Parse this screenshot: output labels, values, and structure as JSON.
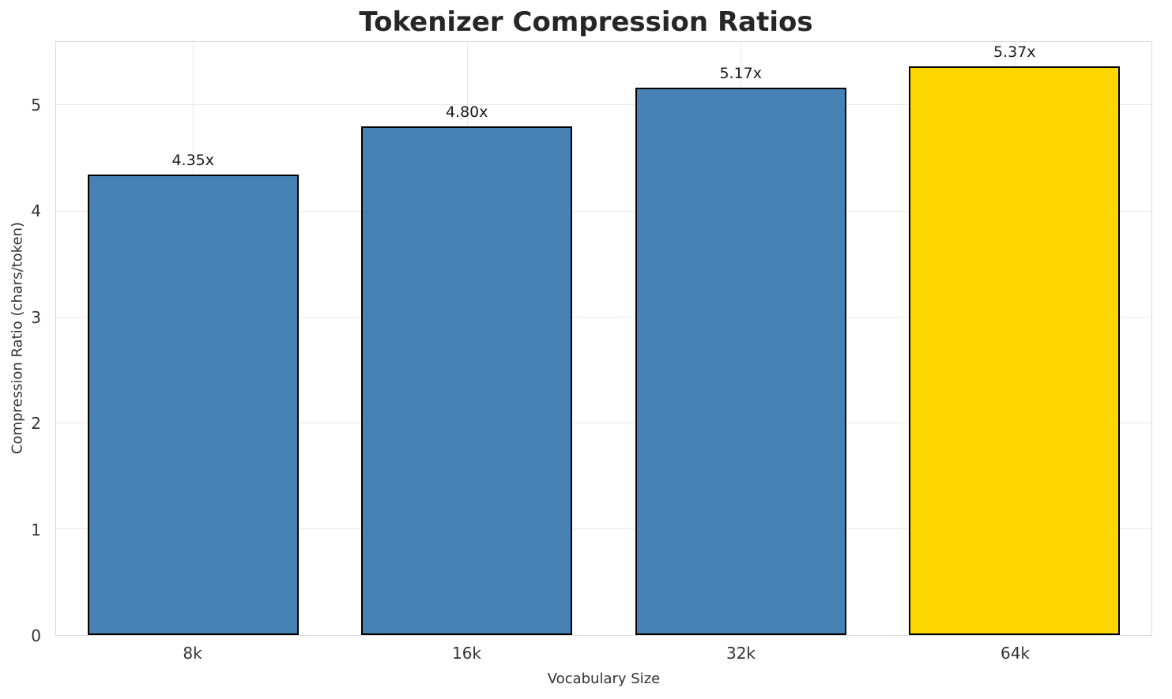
{
  "chart_data": {
    "type": "bar",
    "title": "Tokenizer Compression Ratios",
    "xlabel": "Vocabulary Size",
    "ylabel": "Compression Ratio (chars/token)",
    "categories": [
      "8k",
      "16k",
      "32k",
      "64k"
    ],
    "values": [
      4.35,
      4.8,
      5.17,
      5.37
    ],
    "value_labels": [
      "4.35x",
      "4.80x",
      "5.17x",
      "5.37x"
    ],
    "yticks": [
      0,
      1,
      2,
      3,
      4,
      5
    ],
    "ylim": [
      0,
      5.6
    ],
    "grid": true,
    "legend_position": "none",
    "bar_colors": [
      "#4682B4",
      "#4682B4",
      "#4682B4",
      "#FFD700"
    ],
    "bar_edge_color": "#000000",
    "grid_color": "#E8E8E8",
    "background_color": "#FFFFFF"
  }
}
